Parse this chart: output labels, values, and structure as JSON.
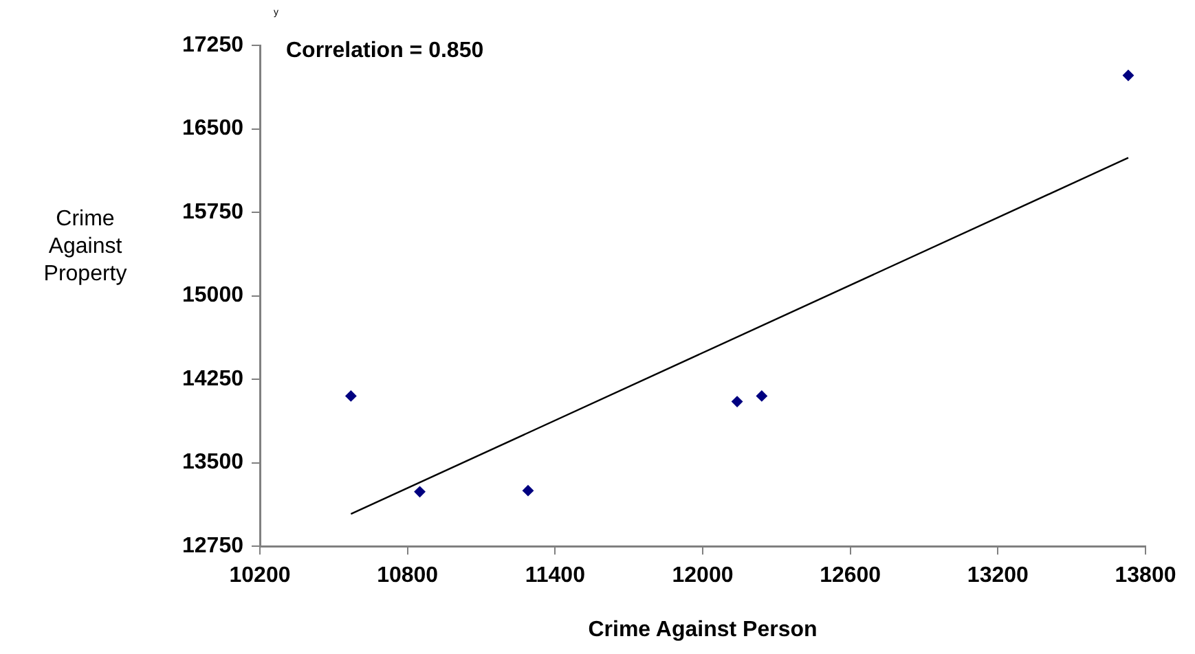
{
  "chart_data": {
    "type": "scatter",
    "xlabel": "Crime Against Person",
    "ylabel": "Crime Against Property",
    "annotations": [
      "y",
      "Correlation = 0.850"
    ],
    "series": [
      {
        "color": "#000080",
        "x": [
          10570,
          10850,
          11290,
          12140,
          12240,
          13730
        ],
        "values": [
          14100,
          13240,
          13250,
          14050,
          14100,
          16980
        ],
        "marker": "diamond"
      },
      {
        "type": "line",
        "color": "#000000",
        "x": [
          10570,
          13730
        ],
        "values": [
          13040,
          16240
        ],
        "marker": "none"
      }
    ],
    "xlim": [
      10200,
      13800
    ],
    "xticks": [
      10200,
      10800,
      11400,
      12000,
      12600,
      13200,
      13800
    ],
    "ylim": [
      12750,
      17250
    ],
    "yticks": [
      12750,
      13500,
      14250,
      15000,
      15750,
      16500,
      17250
    ],
    "grid": false,
    "legend": false
  }
}
